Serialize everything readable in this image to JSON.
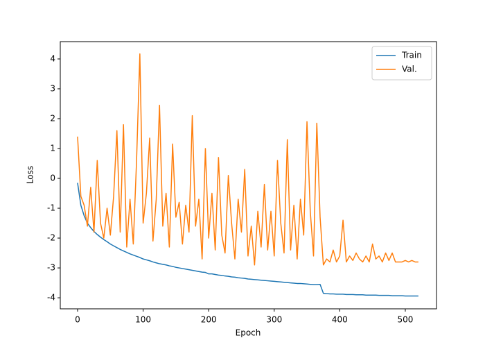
{
  "chart_data": {
    "type": "line",
    "x_label": "Epoch",
    "y_label": "Loss",
    "x": [
      0,
      5,
      10,
      15,
      20,
      25,
      30,
      35,
      40,
      45,
      50,
      55,
      60,
      65,
      70,
      75,
      80,
      85,
      90,
      95,
      100,
      105,
      110,
      115,
      120,
      125,
      130,
      135,
      140,
      145,
      150,
      155,
      160,
      165,
      170,
      175,
      180,
      185,
      190,
      195,
      200,
      205,
      210,
      215,
      220,
      225,
      230,
      235,
      240,
      245,
      250,
      255,
      260,
      265,
      270,
      275,
      280,
      285,
      290,
      295,
      300,
      305,
      310,
      315,
      320,
      325,
      330,
      335,
      340,
      345,
      350,
      355,
      360,
      365,
      370,
      375,
      380,
      385,
      390,
      395,
      400,
      405,
      410,
      415,
      420,
      425,
      430,
      435,
      440,
      445,
      450,
      455,
      460,
      465,
      470,
      475,
      480,
      485,
      490,
      495,
      500,
      505,
      510,
      515,
      520
    ],
    "series": [
      {
        "name": "Train",
        "color": "#1f77b4",
        "values": [
          -0.15,
          -0.9,
          -1.25,
          -1.5,
          -1.65,
          -1.78,
          -1.88,
          -1.97,
          -2.05,
          -2.12,
          -2.2,
          -2.26,
          -2.32,
          -2.38,
          -2.43,
          -2.48,
          -2.53,
          -2.57,
          -2.61,
          -2.65,
          -2.7,
          -2.73,
          -2.76,
          -2.8,
          -2.83,
          -2.86,
          -2.88,
          -2.9,
          -2.93,
          -2.95,
          -2.98,
          -3.0,
          -3.02,
          -3.04,
          -3.06,
          -3.08,
          -3.1,
          -3.12,
          -3.14,
          -3.15,
          -3.2,
          -3.2,
          -3.22,
          -3.24,
          -3.25,
          -3.27,
          -3.28,
          -3.3,
          -3.31,
          -3.33,
          -3.34,
          -3.35,
          -3.37,
          -3.38,
          -3.39,
          -3.4,
          -3.41,
          -3.42,
          -3.43,
          -3.44,
          -3.45,
          -3.46,
          -3.47,
          -3.48,
          -3.49,
          -3.5,
          -3.51,
          -3.52,
          -3.52,
          -3.53,
          -3.54,
          -3.55,
          -3.56,
          -3.56,
          -3.55,
          -3.85,
          -3.86,
          -3.87,
          -3.87,
          -3.88,
          -3.88,
          -3.88,
          -3.89,
          -3.89,
          -3.89,
          -3.9,
          -3.9,
          -3.9,
          -3.91,
          -3.91,
          -3.91,
          -3.91,
          -3.92,
          -3.92,
          -3.92,
          -3.92,
          -3.93,
          -3.93,
          -3.93,
          -3.93,
          -3.94,
          -3.94,
          -3.94,
          -3.94,
          -3.94
        ]
      },
      {
        "name": "Val.",
        "color": "#ff7f0e",
        "values": [
          1.4,
          -0.6,
          -0.9,
          -1.6,
          -0.3,
          -1.8,
          0.6,
          -1.5,
          -2.0,
          -1.0,
          -1.9,
          -0.6,
          1.6,
          -1.8,
          1.8,
          -2.3,
          -0.7,
          -2.2,
          0.6,
          4.17,
          -1.5,
          -0.5,
          1.35,
          -2.1,
          -0.7,
          2.45,
          -1.6,
          -0.5,
          -2.3,
          1.15,
          -1.3,
          -0.8,
          -2.2,
          -0.9,
          -1.8,
          2.1,
          -1.6,
          -0.7,
          -2.7,
          1.0,
          -2.0,
          -0.5,
          -2.4,
          0.7,
          -1.9,
          -2.5,
          0.1,
          -1.5,
          -2.7,
          -0.7,
          -1.8,
          0.3,
          -2.6,
          -1.6,
          -2.9,
          -1.1,
          -2.3,
          -0.2,
          -2.4,
          -1.1,
          -2.6,
          0.6,
          -1.5,
          -2.5,
          1.3,
          -2.4,
          -0.9,
          -2.7,
          -0.7,
          -1.9,
          1.9,
          -1.1,
          -2.6,
          1.85,
          -1.3,
          -2.9,
          -2.7,
          -2.8,
          -2.4,
          -2.8,
          -2.6,
          -1.4,
          -2.8,
          -2.6,
          -2.75,
          -2.5,
          -2.7,
          -2.8,
          -2.6,
          -2.8,
          -2.2,
          -2.7,
          -2.6,
          -2.8,
          -2.5,
          -2.75,
          -2.5,
          -2.8,
          -2.8,
          -2.8,
          -2.75,
          -2.8,
          -2.75,
          -2.8,
          -2.8
        ]
      }
    ],
    "xlim": [
      -26.4,
      547.6
    ],
    "ylim": [
      -4.37,
      4.58
    ],
    "xticks": [
      0,
      100,
      200,
      300,
      400,
      500
    ],
    "yticks": [
      -4,
      -3,
      -2,
      -1,
      0,
      1,
      2,
      3,
      4
    ],
    "grid": false,
    "legend": "upper right"
  }
}
